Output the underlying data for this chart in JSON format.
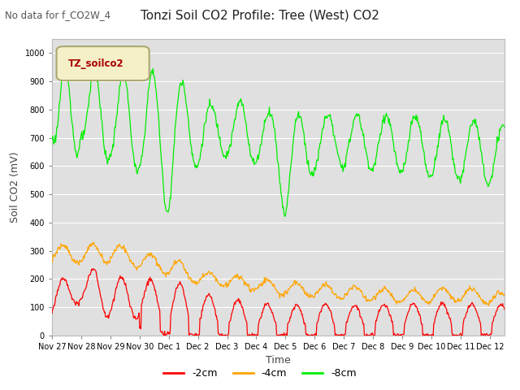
{
  "title": "Tonzi Soil CO2 Profile: Tree (West) CO2",
  "no_data_text": "No data for f_CO2W_4",
  "ylabel": "Soil CO2 (mV)",
  "xlabel": "Time",
  "ylim": [
    0,
    1050
  ],
  "legend_label": "TZ_soilco2",
  "series_labels": [
    "-2cm",
    "-4cm",
    "-8cm"
  ],
  "series_colors": [
    "#ff0000",
    "#ffa500",
    "#00ee00"
  ],
  "plot_bg_color": "#e0e0e0",
  "grid_color": "#ffffff",
  "x_tick_labels": [
    "Nov 27",
    "Nov 28",
    "Nov 29",
    "Nov 30",
    "Dec 1",
    "Dec 2",
    "Dec 3",
    "Dec 4",
    "Dec 5",
    "Dec 6",
    "Dec 7",
    "Dec 8",
    "Dec 9",
    "Dec 10",
    "Dec 11",
    "Dec 12"
  ],
  "yticks": [
    0,
    100,
    200,
    300,
    400,
    500,
    600,
    700,
    800,
    900,
    1000
  ],
  "title_fontsize": 11,
  "axis_label_fontsize": 9,
  "tick_fontsize": 8,
  "legend_box_color": "#f5f0c8",
  "legend_box_edge": "#aaa870",
  "legend_text_color": "#aa0000"
}
